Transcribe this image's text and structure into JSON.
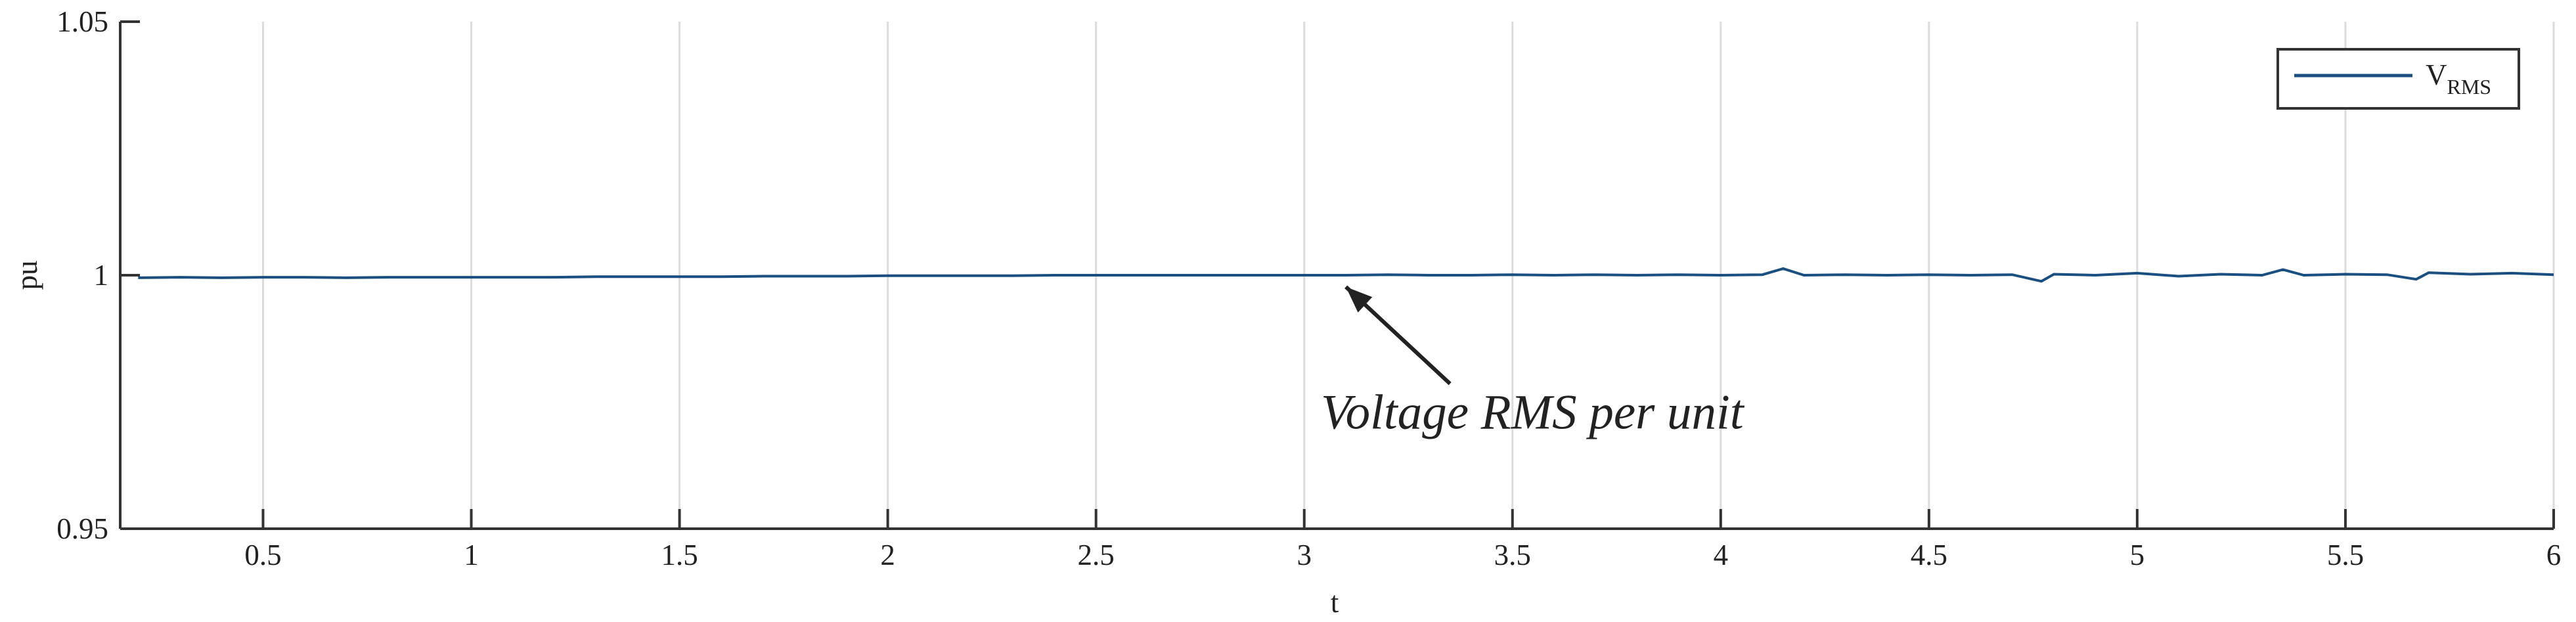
{
  "chart_data": {
    "type": "line",
    "xlabel": "t",
    "ylabel": "pu",
    "x": [
      0.2,
      0.3,
      0.4,
      0.5,
      0.6,
      0.7,
      0.8,
      0.9,
      1.0,
      1.1,
      1.2,
      1.3,
      1.4,
      1.5,
      1.6,
      1.7,
      1.8,
      1.9,
      2.0,
      2.1,
      2.2,
      2.3,
      2.4,
      2.5,
      2.6,
      2.7,
      2.8,
      2.9,
      3.0,
      3.1,
      3.2,
      3.3,
      3.4,
      3.5,
      3.6,
      3.7,
      3.8,
      3.9,
      4.0,
      4.1,
      4.15,
      4.2,
      4.3,
      4.4,
      4.5,
      4.6,
      4.7,
      4.77,
      4.8,
      4.9,
      5.0,
      5.1,
      5.2,
      5.3,
      5.35,
      5.4,
      5.5,
      5.6,
      5.67,
      5.7,
      5.8,
      5.9,
      6.0
    ],
    "series": [
      {
        "name": "VRMS",
        "color": "#1a4f80",
        "values": [
          0.9995,
          0.9996,
          0.9995,
          0.9996,
          0.9996,
          0.9995,
          0.9996,
          0.9996,
          0.9996,
          0.9996,
          0.9996,
          0.9997,
          0.9997,
          0.9997,
          0.9997,
          0.9998,
          0.9998,
          0.9998,
          0.9999,
          0.9999,
          0.9999,
          0.9999,
          1.0,
          1.0,
          1.0,
          1.0,
          1.0,
          1.0,
          1.0,
          1.0,
          1.0001,
          1.0,
          1.0,
          1.0001,
          1.0,
          1.0001,
          1.0,
          1.0001,
          1.0,
          1.0001,
          1.0013,
          1.0,
          1.0001,
          1.0,
          1.0001,
          1.0,
          1.0001,
          0.9988,
          1.0002,
          1.0,
          1.0004,
          0.9998,
          1.0002,
          1.0,
          1.0011,
          1.0,
          1.0002,
          1.0001,
          0.9992,
          1.0005,
          1.0002,
          1.0004,
          1.0001
        ]
      }
    ],
    "xlim": [
      0.157,
      6
    ],
    "ylim": [
      0.95,
      1.05
    ],
    "xticks": [
      0.5,
      1,
      1.5,
      2,
      2.5,
      3,
      3.5,
      4,
      4.5,
      5,
      5.5,
      6
    ],
    "yticks": [
      0.95,
      1,
      1.05
    ],
    "grid": "x",
    "legend": "upper right",
    "annotation": {
      "text": "Voltage RMS per unit",
      "xy": [
        3.1,
        0.9977
      ],
      "xyarrow": [
        3.35,
        0.9786
      ],
      "xytext": [
        3.04,
        0.973
      ]
    }
  }
}
